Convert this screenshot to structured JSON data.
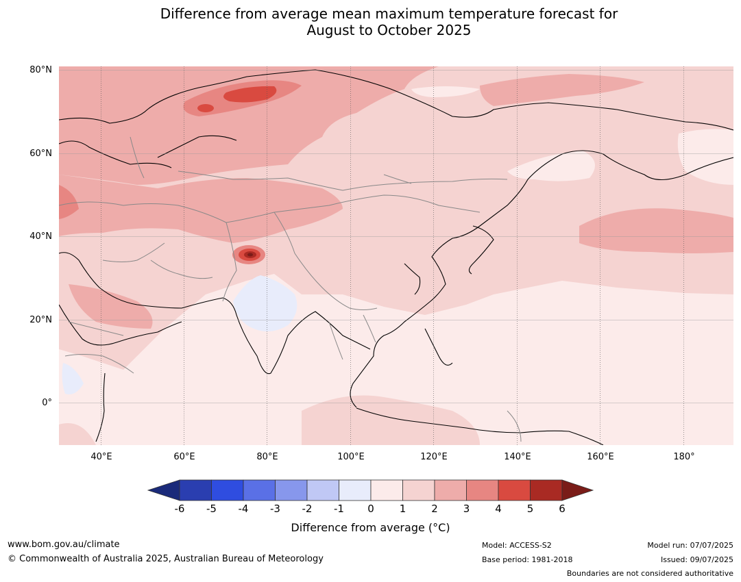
{
  "title_line1": "Difference from average mean maximum temperature forecast for",
  "title_line2": "August to October 2025",
  "map": {
    "lat_labels": [
      "80°N",
      "60°N",
      "40°N",
      "20°N",
      "0°"
    ],
    "lon_labels": [
      "40°E",
      "60°E",
      "80°E",
      "100°E",
      "120°E",
      "140°E",
      "160°E",
      "180°"
    ],
    "extent": {
      "lon_min": 30,
      "lon_max": 191,
      "lat_min": -10,
      "lat_max": 81
    }
  },
  "colorbar": {
    "ticks": [
      "-6",
      "-5",
      "-4",
      "-3",
      "-2",
      "-1",
      "0",
      "1",
      "2",
      "3",
      "4",
      "5",
      "6"
    ],
    "colors": [
      "#1a2a7a",
      "#2a3eb0",
      "#2f4de0",
      "#5a70e6",
      "#8797ec",
      "#c0c8f5",
      "#e8ecfb",
      "#fcebea",
      "#f5d3d1",
      "#eeacaa",
      "#e78682",
      "#d94a40",
      "#a92a23",
      "#7a1c18"
    ],
    "label": "Difference from average ($^\\circ$C)",
    "label_display": "Difference from average (°C)"
  },
  "footer": {
    "url": "www.bom.gov.au/climate",
    "copyright": "© Commonwealth of Australia 2025, Australian Bureau of Meteorology",
    "model": "Model: ACCESS-S2",
    "base_period": "Base period: 1981-2018",
    "model_run": "Model run: 07/07/2025",
    "issued": "Issued: 09/07/2025",
    "boundaries": "Boundaries are not considered authoritative"
  }
}
